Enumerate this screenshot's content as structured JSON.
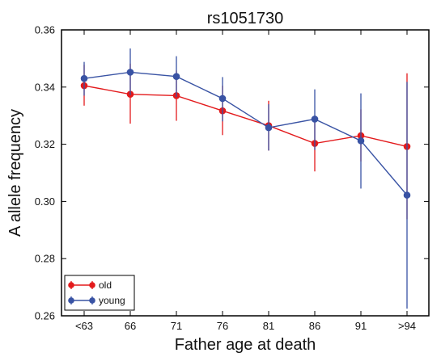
{
  "chart_data": {
    "type": "line",
    "title": "rs1051730",
    "xlabel": "Father age at death",
    "ylabel": "A allele frequency",
    "categories": [
      "<63",
      "66",
      "71",
      "76",
      "81",
      "86",
      "91",
      ">94"
    ],
    "ylim": [
      0.26,
      0.36
    ],
    "yticks": [
      "0.26",
      "0.28",
      "0.30",
      "0.32",
      "0.34",
      "0.36"
    ],
    "grid": false,
    "legend_position": "bottom-left",
    "series": [
      {
        "name": "old",
        "color": "#e31a1c",
        "values": [
          0.3405,
          0.3375,
          0.337,
          0.3317,
          0.3265,
          0.3203,
          0.323,
          0.3192
        ],
        "err_low": [
          0.3335,
          0.3272,
          0.3282,
          0.3232,
          0.3178,
          0.3105,
          0.314,
          0.2938
        ],
        "err_high": [
          0.3478,
          0.3482,
          0.3458,
          0.3405,
          0.3352,
          0.33,
          0.3322,
          0.3448
        ]
      },
      {
        "name": "young",
        "color": "#3953a4",
        "values": [
          0.343,
          0.3452,
          0.3437,
          0.336,
          0.3258,
          0.3288,
          0.3212,
          0.3022
        ],
        "err_low": [
          0.337,
          0.3372,
          0.3365,
          0.328,
          0.3178,
          0.318,
          0.3045,
          0.2625
        ],
        "err_high": [
          0.3488,
          0.3535,
          0.3508,
          0.3435,
          0.334,
          0.3392,
          0.3378,
          0.3418
        ]
      }
    ]
  }
}
